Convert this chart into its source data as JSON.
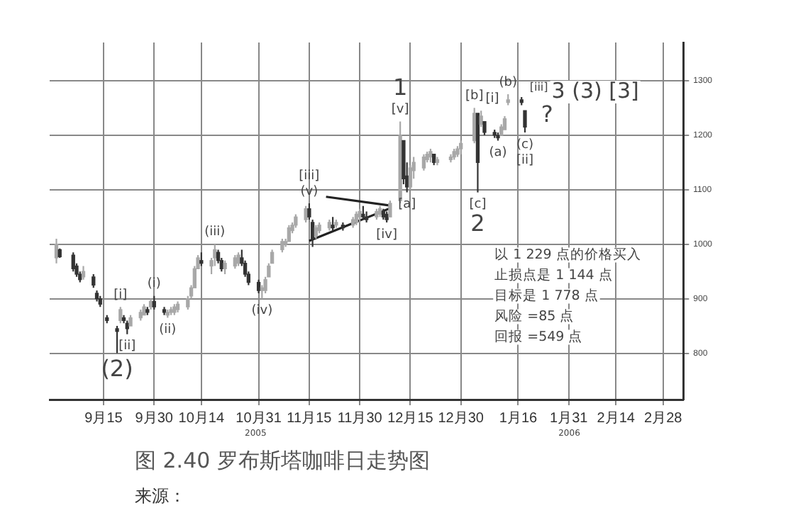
{
  "chart_data": {
    "type": "candlestick",
    "title": "图 2.40   罗布斯塔咖啡日走势图",
    "x": [
      "2005-09-01",
      "2005-09-02",
      "2005-09-06",
      "2005-09-07",
      "2005-09-08",
      "2005-09-09",
      "2005-09-12",
      "2005-09-13",
      "2005-09-14",
      "2005-09-16",
      "2005-09-19",
      "2005-09-20",
      "2005-09-21",
      "2005-09-22",
      "2005-09-23",
      "2005-09-26",
      "2005-09-27",
      "2005-09-28",
      "2005-09-29",
      "2005-09-30",
      "2005-10-03",
      "2005-10-04",
      "2005-10-05",
      "2005-10-06",
      "2005-10-07",
      "2005-10-10",
      "2005-10-11",
      "2005-10-12",
      "2005-10-13",
      "2005-10-14",
      "2005-10-17",
      "2005-10-18",
      "2005-10-19",
      "2005-10-20",
      "2005-10-21",
      "2005-10-24",
      "2005-10-25",
      "2005-10-26",
      "2005-10-27",
      "2005-10-28",
      "2005-10-31",
      "2005-11-01",
      "2005-11-02",
      "2005-11-03",
      "2005-11-04",
      "2005-11-07",
      "2005-11-08",
      "2005-11-09",
      "2005-11-10",
      "2005-11-11",
      "2005-11-14",
      "2005-11-15",
      "2005-11-16",
      "2005-11-17",
      "2005-11-18",
      "2005-11-21",
      "2005-11-22",
      "2005-11-23",
      "2005-11-25",
      "2005-11-28",
      "2005-11-29",
      "2005-11-30",
      "2005-12-01",
      "2005-12-02",
      "2005-12-05",
      "2005-12-06",
      "2005-12-07",
      "2005-12-08",
      "2005-12-09",
      "2005-12-12",
      "2005-12-13",
      "2005-12-14",
      "2005-12-15",
      "2005-12-16",
      "2005-12-19",
      "2005-12-20",
      "2005-12-21",
      "2005-12-22",
      "2005-12-23",
      "2005-12-27",
      "2005-12-28",
      "2005-12-29",
      "2005-12-30",
      "2006-01-03",
      "2006-01-04",
      "2006-01-05",
      "2006-01-06",
      "2006-01-09",
      "2006-01-10",
      "2006-01-11",
      "2006-01-12",
      "2006-01-13",
      "2006-01-17",
      "2006-01-18"
    ],
    "ohlc": [
      [
        975,
        1010,
        965,
        1000
      ],
      [
        990,
        992,
        975,
        977
      ],
      [
        980,
        985,
        950,
        955
      ],
      [
        960,
        965,
        940,
        945
      ],
      [
        945,
        950,
        930,
        935
      ],
      [
        940,
        960,
        935,
        950
      ],
      [
        940,
        945,
        920,
        925
      ],
      [
        910,
        915,
        895,
        900
      ],
      [
        900,
        905,
        885,
        890
      ],
      [
        865,
        870,
        855,
        860
      ],
      [
        845,
        850,
        800,
        840
      ],
      [
        860,
        885,
        855,
        880
      ],
      [
        865,
        870,
        855,
        860
      ],
      [
        855,
        860,
        835,
        845
      ],
      [
        850,
        870,
        850,
        865
      ],
      [
        865,
        880,
        860,
        875
      ],
      [
        870,
        890,
        870,
        885
      ],
      [
        880,
        885,
        870,
        875
      ],
      [
        885,
        900,
        880,
        895
      ],
      [
        895,
        905,
        880,
        885
      ],
      [
        880,
        885,
        870,
        875
      ],
      [
        870,
        880,
        865,
        875
      ],
      [
        875,
        885,
        870,
        880
      ],
      [
        875,
        890,
        870,
        885
      ],
      [
        880,
        895,
        875,
        890
      ],
      [
        885,
        905,
        880,
        900
      ],
      [
        905,
        925,
        900,
        920
      ],
      [
        920,
        960,
        920,
        955
      ],
      [
        955,
        980,
        955,
        975
      ],
      [
        970,
        985,
        960,
        965
      ],
      [
        960,
        975,
        945,
        970
      ],
      [
        975,
        1000,
        960,
        990
      ],
      [
        985,
        990,
        965,
        970
      ],
      [
        970,
        975,
        950,
        955
      ],
      [
        955,
        970,
        945,
        965
      ],
      [
        960,
        980,
        955,
        975
      ],
      [
        965,
        985,
        960,
        980
      ],
      [
        975,
        990,
        960,
        965
      ],
      [
        965,
        970,
        940,
        945
      ],
      [
        945,
        950,
        925,
        930
      ],
      [
        930,
        935,
        910,
        915
      ],
      [
        915,
        925,
        900,
        920
      ],
      [
        915,
        940,
        910,
        935
      ],
      [
        940,
        965,
        940,
        960
      ],
      [
        965,
        990,
        965,
        985
      ],
      [
        990,
        1010,
        985,
        1005
      ],
      [
        1000,
        1010,
        995,
        1005
      ],
      [
        1005,
        1035,
        1005,
        1030
      ],
      [
        1025,
        1040,
        1020,
        1035
      ],
      [
        1035,
        1055,
        1030,
        1050
      ],
      [
        1045,
        1070,
        1040,
        1065
      ],
      [
        1065,
        1075,
        1045,
        1050
      ],
      [
        1040,
        1045,
        995,
        1010
      ],
      [
        1015,
        1035,
        1010,
        1030
      ],
      [
        1025,
        1040,
        1020,
        1035
      ],
      [
        1030,
        1045,
        1025,
        1040
      ],
      [
        1035,
        1050,
        1025,
        1030
      ],
      [
        1035,
        1045,
        1030,
        1040
      ],
      [
        1035,
        1040,
        1025,
        1030
      ],
      [
        1035,
        1050,
        1030,
        1045
      ],
      [
        1040,
        1060,
        1035,
        1055
      ],
      [
        1050,
        1065,
        1040,
        1060
      ],
      [
        1055,
        1070,
        1045,
        1050
      ],
      [
        1050,
        1060,
        1040,
        1045
      ],
      [
        1050,
        1065,
        1045,
        1060
      ],
      [
        1055,
        1070,
        1050,
        1065
      ],
      [
        1060,
        1065,
        1045,
        1050
      ],
      [
        1055,
        1060,
        1040,
        1045
      ],
      [
        1050,
        1080,
        1050,
        1075
      ],
      [
        1080,
        1225,
        1075,
        1200
      ],
      [
        1190,
        1190,
        1110,
        1120
      ],
      [
        1125,
        1150,
        1095,
        1105
      ],
      [
        1105,
        1145,
        1100,
        1140
      ],
      [
        1135,
        1160,
        1120,
        1150
      ],
      [
        1140,
        1165,
        1135,
        1160
      ],
      [
        1155,
        1170,
        1150,
        1165
      ],
      [
        1160,
        1175,
        1150,
        1170
      ],
      [
        1165,
        1165,
        1145,
        1150
      ],
      [
        1150,
        1160,
        1145,
        1155
      ],
      [
        1155,
        1165,
        1150,
        1160
      ],
      [
        1160,
        1175,
        1155,
        1170
      ],
      [
        1165,
        1180,
        1160,
        1175
      ],
      [
        1175,
        1190,
        1165,
        1185
      ],
      [
        1190,
        1250,
        1185,
        1240
      ],
      [
        1240,
        1240,
        1095,
        1150
      ],
      [
        1220,
        1245,
        1215,
        1235
      ],
      [
        1225,
        1225,
        1200,
        1205
      ],
      [
        1205,
        1210,
        1195,
        1200
      ],
      [
        1200,
        1205,
        1190,
        1195
      ],
      [
        1200,
        1220,
        1200,
        1215
      ],
      [
        1210,
        1235,
        1210,
        1230
      ],
      [
        1260,
        1275,
        1255,
        1265
      ],
      [
        1265,
        1270,
        1255,
        1260
      ],
      [
        1245,
        1245,
        1205,
        1215
      ]
    ],
    "colors": [
      "#a8a8a8",
      "#333333",
      "#333333",
      "#333333",
      "#333333",
      "#a8a8a8",
      "#333333",
      "#333333",
      "#333333",
      "#333333",
      "#333333",
      "#a8a8a8",
      "#333333",
      "#333333",
      "#a8a8a8",
      "#a8a8a8",
      "#a8a8a8",
      "#333333",
      "#a8a8a8",
      "#333333",
      "#333333",
      "#a8a8a8",
      "#a8a8a8",
      "#a8a8a8",
      "#a8a8a8",
      "#a8a8a8",
      "#a8a8a8",
      "#a8a8a8",
      "#a8a8a8",
      "#333333",
      "#a8a8a8",
      "#a8a8a8",
      "#333333",
      "#333333",
      "#a8a8a8",
      "#a8a8a8",
      "#a8a8a8",
      "#333333",
      "#333333",
      "#333333",
      "#333333",
      "#a8a8a8",
      "#a8a8a8",
      "#a8a8a8",
      "#a8a8a8",
      "#a8a8a8",
      "#a8a8a8",
      "#a8a8a8",
      "#a8a8a8",
      "#a8a8a8",
      "#a8a8a8",
      "#333333",
      "#333333",
      "#a8a8a8",
      "#a8a8a8",
      "#a8a8a8",
      "#333333",
      "#a8a8a8",
      "#333333",
      "#a8a8a8",
      "#a8a8a8",
      "#a8a8a8",
      "#333333",
      "#333333",
      "#a8a8a8",
      "#a8a8a8",
      "#333333",
      "#333333",
      "#a8a8a8",
      "#a8a8a8",
      "#333333",
      "#333333",
      "#a8a8a8",
      "#a8a8a8",
      "#a8a8a8",
      "#a8a8a8",
      "#a8a8a8",
      "#333333",
      "#a8a8a8",
      "#a8a8a8",
      "#a8a8a8",
      "#a8a8a8",
      "#a8a8a8",
      "#a8a8a8",
      "#333333",
      "#a8a8a8",
      "#333333",
      "#333333",
      "#333333",
      "#a8a8a8",
      "#a8a8a8",
      "#a8a8a8",
      "#333333",
      "#333333"
    ],
    "xlim": [
      "2005-08-30",
      "2006-03-06"
    ],
    "xticks": [
      {
        "value": "2005-09-15",
        "label": "9月15"
      },
      {
        "value": "2005-09-30",
        "label": "9月30"
      },
      {
        "value": "2005-10-14",
        "label": "10月14"
      },
      {
        "value": "2005-10-31",
        "label": "10月31"
      },
      {
        "value": "2005-11-15",
        "label": "11月15"
      },
      {
        "value": "2005-11-30",
        "label": "11月30"
      },
      {
        "value": "2005-12-15",
        "label": "12月15"
      },
      {
        "value": "2005-12-30",
        "label": "12月30"
      },
      {
        "value": "2006-01-16",
        "label": "1月16"
      },
      {
        "value": "2006-01-31",
        "label": "1月31"
      },
      {
        "value": "2006-02-14",
        "label": "2月14"
      },
      {
        "value": "2006-02-28",
        "label": "2月28"
      }
    ],
    "ylim": [
      715,
      1370
    ],
    "yticks": [
      800,
      900,
      1000,
      1100,
      1200,
      1300
    ],
    "grid": true,
    "legend": false,
    "series": [
      {
        "type": "line",
        "color": "#222222",
        "x": [
          "2005-11-15",
          "2005-12-09"
        ],
        "values": [
          1006,
          1066
        ]
      },
      {
        "type": "line",
        "color": "#222222",
        "x": [
          "2005-11-20",
          "2005-12-09"
        ],
        "values": [
          1087,
          1071
        ]
      }
    ],
    "annotations": [
      {
        "text": "(2)",
        "x": "2005-09-19",
        "y": 800
      },
      {
        "text": "[i]",
        "x": "2005-09-20",
        "y": 885
      },
      {
        "text": "[ii]",
        "x": "2005-09-22",
        "y": 835
      },
      {
        "text": "(i)",
        "x": "2005-09-30",
        "y": 905
      },
      {
        "text": "(ii)",
        "x": "2005-10-04",
        "y": 865
      },
      {
        "text": "(iii)",
        "x": "2005-10-18",
        "y": 1000
      },
      {
        "text": "(iv)",
        "x": "2005-11-01",
        "y": 900
      },
      {
        "text": "[iii]",
        "x": "2005-11-15",
        "y": 1075
      },
      {
        "text": "(v)",
        "x": "2005-11-15",
        "y": 1075
      },
      {
        "text": "[iv]",
        "x": "2005-12-08",
        "y": 1040
      },
      {
        "text": "1",
        "x": "2005-12-12",
        "y": 1225
      },
      {
        "text": "[v]",
        "x": "2005-12-12",
        "y": 1225
      },
      {
        "text": "[a]",
        "x": "2005-12-14",
        "y": 1095
      },
      {
        "text": "[b]",
        "x": "2006-01-03",
        "y": 1250
      },
      {
        "text": "[c]",
        "x": "2006-01-04",
        "y": 1095
      },
      {
        "text": "2",
        "x": "2006-01-04",
        "y": 1095
      },
      {
        "text": "[i]",
        "x": "2006-01-05",
        "y": 1245
      },
      {
        "text": "(a)",
        "x": "2006-01-10",
        "y": 1190
      },
      {
        "text": "(b)",
        "x": "2006-01-13",
        "y": 1275
      },
      {
        "text": "(c)",
        "x": "2006-01-18",
        "y": 1205
      },
      {
        "text": "[ii]",
        "x": "2006-01-18",
        "y": 1205
      },
      "?",
      "[iii]",
      "3 (3) [3]",
      "2005",
      "2006",
      "以 1 229 点的价格买入",
      "止损点是 1 144 点",
      "目标是 1 778 点",
      "风险 =85 点",
      "回报 =549 点",
      "来源："
    ]
  }
}
